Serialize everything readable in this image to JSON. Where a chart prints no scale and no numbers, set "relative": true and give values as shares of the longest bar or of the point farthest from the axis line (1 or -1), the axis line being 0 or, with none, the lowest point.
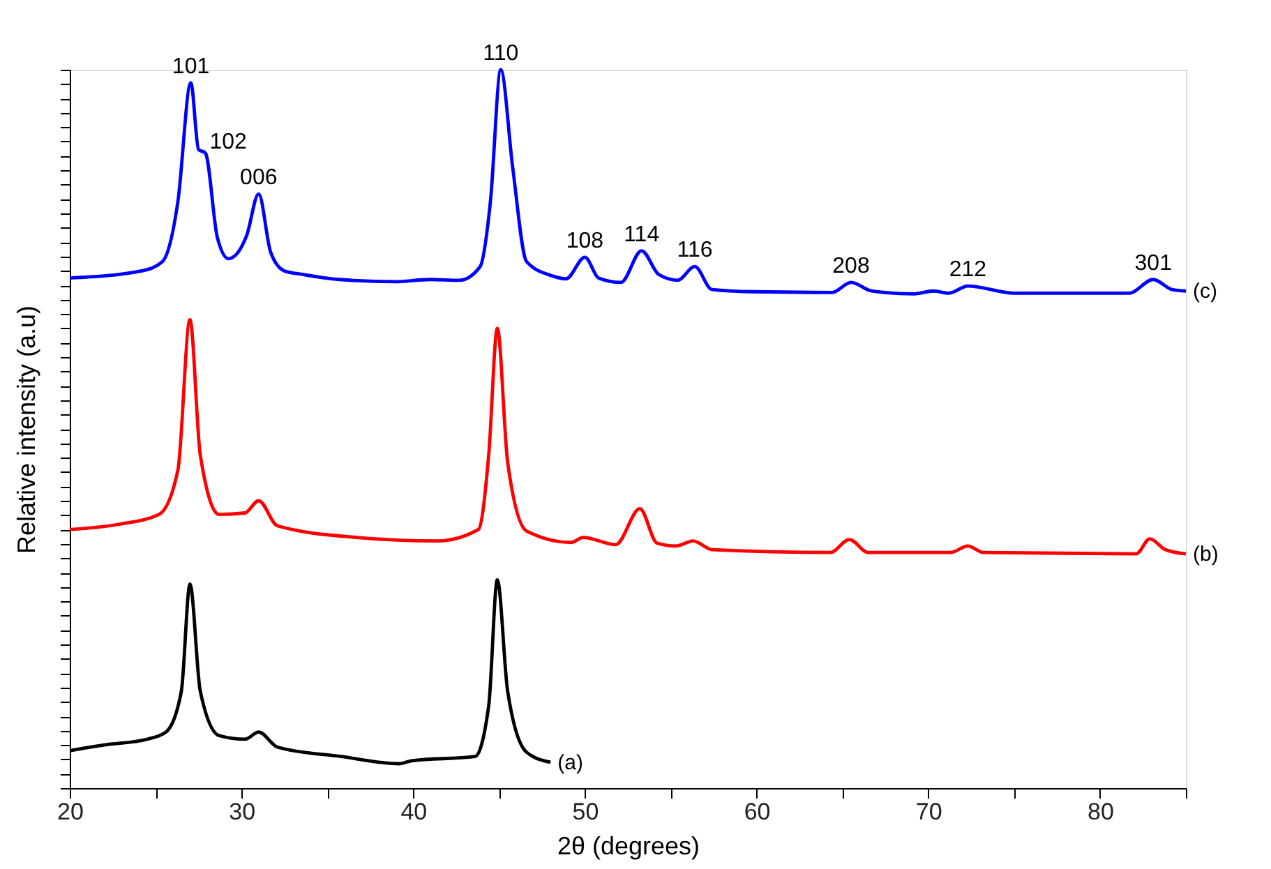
{
  "chart_data": {
    "type": "line",
    "relative": true,
    "xlabel": "2θ (degrees)",
    "ylabel": "Relative intensity (a.u)",
    "xlim": [
      20,
      85
    ],
    "xticks": [
      20,
      {
        "value": 25,
        "label": null
      },
      30,
      {
        "value": 35,
        "label": null
      },
      40,
      {
        "value": 45,
        "label": null
      },
      50,
      {
        "value": 55,
        "label": null
      },
      60,
      {
        "value": 65,
        "label": null
      },
      70,
      {
        "value": 75,
        "label": null
      },
      80,
      {
        "value": 85,
        "label": null
      }
    ],
    "tick_labels": "x",
    "grid": false,
    "legend": false,
    "marker": "none",
    "line_style": "solid",
    "series": [
      {
        "name": "(a)",
        "color": "#000000",
        "x": [
          20,
          22.0,
          24.5,
          25.6,
          26.5,
          27.0,
          27.6,
          28.7,
          30.2,
          31.0,
          32.1,
          35.8,
          39.2,
          39.9,
          43.6,
          44.4,
          44.9,
          45.5,
          46.6,
          48.0
        ],
        "values": [
          0.052,
          0.06,
          0.068,
          0.078,
          0.135,
          0.284,
          0.135,
          0.073,
          0.068,
          0.078,
          0.057,
          0.044,
          0.034,
          0.038,
          0.044,
          0.115,
          0.29,
          0.135,
          0.05,
          0.036
        ]
      },
      {
        "name": "(b)",
        "color": "#ff0000",
        "x": [
          20,
          22.8,
          25.2,
          26.3,
          27.0,
          27.6,
          28.7,
          30.2,
          31.0,
          32.1,
          36.7,
          41.4,
          43.8,
          44.4,
          44.9,
          45.5,
          46.6,
          49.2,
          49.9,
          51.8,
          53.2,
          54.2,
          55.3,
          56.3,
          57.4,
          64.3,
          65.4,
          66.5,
          71.3,
          72.3,
          73.2,
          82.1,
          82.9,
          83.8,
          85.0
        ],
        "values": [
          0.36,
          0.367,
          0.381,
          0.443,
          0.652,
          0.464,
          0.381,
          0.383,
          0.4,
          0.365,
          0.349,
          0.344,
          0.36,
          0.464,
          0.64,
          0.454,
          0.358,
          0.342,
          0.349,
          0.339,
          0.389,
          0.341,
          0.337,
          0.344,
          0.332,
          0.328,
          0.346,
          0.328,
          0.328,
          0.337,
          0.328,
          0.326,
          0.347,
          0.332,
          0.326
        ]
      },
      {
        "name": "(c)",
        "color": "#0000ff",
        "x": [
          20,
          24.2,
          25.4,
          26.3,
          27.05,
          27.5,
          27.9,
          28.6,
          29.25,
          30.3,
          31.0,
          31.7,
          32.5,
          33.6,
          35.7,
          38.9,
          41.0,
          42.7,
          43.9,
          44.5,
          45.1,
          45.8,
          46.6,
          48.1,
          48.9,
          50.0,
          50.8,
          52.1,
          53.3,
          54.3,
          55.4,
          56.4,
          57.4,
          59.7,
          64.4,
          65.5,
          66.7,
          69.1,
          70.3,
          71.2,
          72.3,
          75.0,
          81.7,
          83.1,
          84.2,
          85.0
        ],
        "values": [
          0.71,
          0.72,
          0.733,
          0.817,
          0.982,
          0.889,
          0.884,
          0.766,
          0.737,
          0.769,
          0.827,
          0.746,
          0.72,
          0.715,
          0.708,
          0.705,
          0.708,
          0.707,
          0.726,
          0.817,
          1,
          0.863,
          0.733,
          0.713,
          0.709,
          0.739,
          0.71,
          0.704,
          0.748,
          0.715,
          0.707,
          0.726,
          0.694,
          0.691,
          0.69,
          0.704,
          0.692,
          0.688,
          0.692,
          0.689,
          0.699,
          0.689,
          0.689,
          0.708,
          0.694,
          0.692
        ]
      }
    ],
    "annotations": [
      {
        "text": "101",
        "x": 27.05,
        "y": 0.982
      },
      {
        "text": "102",
        "x": 27.9,
        "y": 0.884
      },
      {
        "text": "006",
        "x": 31.0,
        "y": 0.827
      },
      {
        "text": "110",
        "x": 45.1,
        "y": 1
      },
      {
        "text": "108",
        "x": 50.0,
        "y": 0.739
      },
      {
        "text": "114",
        "x": 53.3,
        "y": 0.748
      },
      {
        "text": "116",
        "x": 56.4,
        "y": 0.726
      },
      {
        "text": "208",
        "x": 65.5,
        "y": 0.704
      },
      {
        "text": "212",
        "x": 72.3,
        "y": 0.699
      },
      {
        "text": "301",
        "x": 83.1,
        "y": 0.708
      }
    ]
  }
}
